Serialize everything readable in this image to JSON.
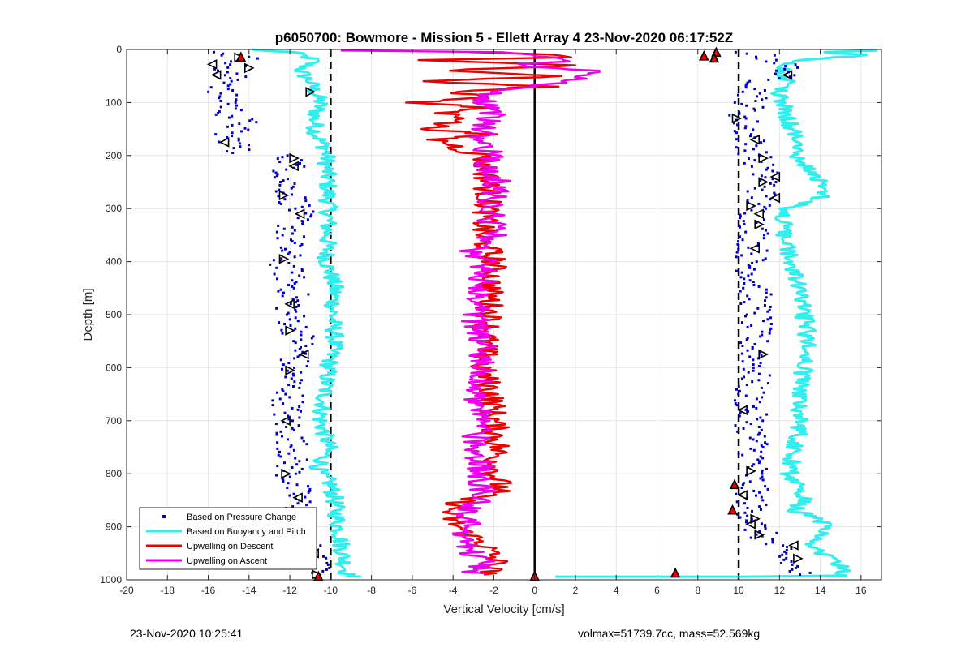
{
  "chart_data": {
    "type": "scatter",
    "title": "p6050700: Bowmore - Mission 5 - Ellett Array 4 23-Nov-2020 06:17:52Z",
    "xlabel": "Vertical Velocity [cm/s]",
    "ylabel": "Depth [m]",
    "xlim": [
      -20,
      17
    ],
    "ylim": [
      0,
      1000
    ],
    "y_reversed": true,
    "grid": true,
    "legend_position": "bottom-left",
    "xticks": [
      -20,
      -18,
      -16,
      -14,
      -12,
      -10,
      -8,
      -6,
      -4,
      -2,
      0,
      2,
      4,
      6,
      8,
      10,
      12,
      14,
      16
    ],
    "yticks": [
      0,
      100,
      200,
      300,
      400,
      500,
      600,
      700,
      800,
      900,
      1000
    ],
    "reference_lines": [
      {
        "x": -10,
        "style": "dashed",
        "color": "#000000"
      },
      {
        "x": 10,
        "style": "dashed",
        "color": "#000000"
      },
      {
        "x": 0,
        "style": "solid",
        "color": "#000000"
      }
    ],
    "series": [
      {
        "name": "Based on Pressure Change",
        "style": "points",
        "color": "#0000cc",
        "segments": [
          {
            "depth": [
              5,
              20,
              40,
              60,
              80,
              100,
              120,
              140,
              160,
              180,
              195
            ],
            "velocity": [
              -15.2,
              -14.0,
              -15.4,
              -14.5,
              -15.6,
              -14.8,
              -15.0,
              -14.2,
              -15.2,
              -14.5,
              -14.8
            ]
          },
          {
            "depth": [
              200,
              250,
              300,
              350,
              400,
              450,
              500,
              550,
              600,
              650,
              700,
              750,
              800,
              850,
              900,
              950,
              990
            ],
            "velocity": [
              -11.8,
              -12.2,
              -11.6,
              -12.0,
              -12.3,
              -11.8,
              -12.0,
              -11.4,
              -11.9,
              -12.0,
              -12.2,
              -11.8,
              -12.0,
              -11.6,
              -11.8,
              -11.0,
              -10.6
            ]
          },
          {
            "depth": [
              5,
              20,
              40,
              60,
              80,
              100,
              130,
              160,
              200,
              250,
              300,
              350,
              400,
              450,
              500,
              550,
              600,
              650,
              700,
              750,
              800,
              850,
              900,
              950,
              990
            ],
            "velocity": [
              10.5,
              11.8,
              12.6,
              11.2,
              10.8,
              10.6,
              10.2,
              10.5,
              10.8,
              11.4,
              10.8,
              10.8,
              10.6,
              10.8,
              10.9,
              10.7,
              10.9,
              10.5,
              10.6,
              10.8,
              10.7,
              10.6,
              10.8,
              12.0,
              13.0
            ]
          }
        ]
      },
      {
        "name": "Based on Buoyancy and Pitch",
        "style": "line",
        "color": "#33eeee",
        "segments": [
          {
            "depth": [
              0,
              5,
              10,
              20,
              40,
              60,
              80,
              100,
              130,
              160,
              190,
              200,
              300,
              400,
              450,
              500,
              550,
              600,
              650,
              700,
              750,
              790,
              800,
              810,
              820,
              850,
              880,
              900,
              950,
              990,
              994
            ],
            "velocity": [
              -14,
              -12,
              -11.5,
              -10.8,
              -11.5,
              -11.0,
              -10.8,
              -10.5,
              -10.8,
              -10.7,
              -10.2,
              -10.2,
              -10.1,
              -10.2,
              -9.8,
              -9.9,
              -9.8,
              -10.1,
              -10.3,
              -10.5,
              -10.1,
              -10.6,
              -10.5,
              -10.2,
              -10.0,
              -9.8,
              -9.7,
              -9.6,
              -9.4,
              -9.2,
              -8.5
            ]
          },
          {
            "depth": [
              994,
              994,
              992,
              990,
              980,
              960,
              940,
              920,
              900,
              880,
              870,
              850,
              820,
              800,
              780,
              750,
              700,
              650,
              600,
              550,
              500,
              450,
              400,
              350,
              300,
              290,
              280,
              260,
              240,
              220,
              200,
              180,
              150,
              100,
              80,
              60,
              40,
              20,
              10,
              5,
              2
            ],
            "velocity": [
              1.0,
              10.0,
              15.0,
              15.2,
              15.0,
              14.8,
              13.5,
              13.8,
              14.2,
              13.8,
              12.8,
              13.2,
              12.8,
              12.5,
              12.6,
              12.8,
              13.0,
              13.0,
              13.2,
              13.4,
              13.2,
              12.9,
              12.6,
              12.2,
              12.2,
              13.2,
              14.0,
              13.9,
              14.0,
              13.3,
              12.9,
              13.0,
              12.6,
              12.2,
              12.0,
              12.4,
              12.2,
              12.8,
              16.5,
              14.0,
              16.8
            ]
          }
        ]
      },
      {
        "name": "Upwelling on Descent",
        "style": "line",
        "color": "#ee0000",
        "segments": [
          {
            "depth": [
              5,
              10,
              15,
              20,
              30,
              40,
              50,
              60,
              70,
              80,
              90,
              100,
              110,
              120,
              130,
              140,
              150,
              160,
              170,
              180,
              190,
              200,
              250,
              300,
              350,
              400,
              450,
              500,
              550,
              600,
              650,
              700,
              750,
              800,
              830,
              850,
              870,
              890,
              910,
              930,
              950,
              970,
              990
            ],
            "velocity": [
              -3,
              0.5,
              1.5,
              -5,
              2.3,
              -4.5,
              1.5,
              -5.5,
              0.5,
              -4,
              -2,
              -6,
              -2.5,
              -4.5,
              -3,
              -4.5,
              -5,
              -2.5,
              -4.8,
              -4,
              -3.5,
              -2.5,
              -2.3,
              -2.3,
              -2.6,
              -2.0,
              -2.2,
              -2.2,
              -2.4,
              -2.6,
              -2.1,
              -2.0,
              -1.8,
              -2.0,
              -1.6,
              -3.5,
              -4.2,
              -4.0,
              -3.5,
              -2.5,
              -2.2,
              -1.8,
              -2.5
            ]
          }
        ]
      },
      {
        "name": "Upwelling on Ascent",
        "style": "line",
        "color": "#ee00ee",
        "segments": [
          {
            "depth": [
              990,
              970,
              950,
              930,
              910,
              890,
              870,
              850,
              830,
              800,
              780,
              750,
              700,
              650,
              600,
              550,
              500,
              450,
              400,
              380,
              350,
              300,
              250,
              220,
              200,
              180,
              150,
              120,
              100,
              80,
              60,
              40,
              30,
              20,
              10,
              5,
              2
            ],
            "velocity": [
              -3.0,
              -2.5,
              -3.0,
              -3.2,
              -3.5,
              -3.0,
              -3.5,
              -2.8,
              -2.5,
              -2.8,
              -2.6,
              -3.0,
              -2.6,
              -2.8,
              -2.5,
              -2.6,
              -3.0,
              -2.6,
              -2.4,
              -3.2,
              -2.0,
              -2.2,
              -1.8,
              -2.5,
              -2.0,
              -2.8,
              -2.5,
              -2.0,
              -2.6,
              -2.2,
              1.5,
              3.4,
              -1.0,
              2.0,
              -0.5,
              -2.0,
              -9.5
            ]
          }
        ]
      }
    ],
    "markers": {
      "black_triangles": [
        {
          "v": -14.5,
          "d": 15
        },
        {
          "v": -15.8,
          "d": 28
        },
        {
          "v": -14.0,
          "d": 35
        },
        {
          "v": -15.6,
          "d": 48
        },
        {
          "v": -11.0,
          "d": 80
        },
        {
          "v": -15.2,
          "d": 175
        },
        {
          "v": -11.8,
          "d": 205
        },
        {
          "v": -11.8,
          "d": 220
        },
        {
          "v": -12.3,
          "d": 275
        },
        {
          "v": -11.5,
          "d": 310
        },
        {
          "v": -12.3,
          "d": 395
        },
        {
          "v": -12.0,
          "d": 480
        },
        {
          "v": -12.0,
          "d": 530
        },
        {
          "v": -11.3,
          "d": 575
        },
        {
          "v": -12.0,
          "d": 605
        },
        {
          "v": -12.2,
          "d": 700
        },
        {
          "v": -12.2,
          "d": 800
        },
        {
          "v": -11.6,
          "d": 845
        },
        {
          "v": -12.3,
          "d": 915
        },
        {
          "v": -10.8,
          "d": 950
        },
        {
          "v": -10.7,
          "d": 990
        },
        {
          "v": 12.4,
          "d": 48
        },
        {
          "v": 9.9,
          "d": 130
        },
        {
          "v": 10.8,
          "d": 170
        },
        {
          "v": 11.2,
          "d": 205
        },
        {
          "v": 11.8,
          "d": 240
        },
        {
          "v": 11.2,
          "d": 250
        },
        {
          "v": 11.8,
          "d": 280
        },
        {
          "v": 10.6,
          "d": 295
        },
        {
          "v": 11.0,
          "d": 310
        },
        {
          "v": 11.0,
          "d": 330
        },
        {
          "v": 10.8,
          "d": 375
        },
        {
          "v": 11.2,
          "d": 575
        },
        {
          "v": 10.2,
          "d": 680
        },
        {
          "v": 10.6,
          "d": 795
        },
        {
          "v": 10.2,
          "d": 840
        },
        {
          "v": 10.8,
          "d": 885
        },
        {
          "v": 10.6,
          "d": 895
        },
        {
          "v": 11.0,
          "d": 915
        },
        {
          "v": 12.7,
          "d": 935
        },
        {
          "v": 12.9,
          "d": 960
        }
      ],
      "red_triangles": [
        {
          "v": -14.4,
          "d": 14
        },
        {
          "v": -10.6,
          "d": 993
        },
        {
          "v": 0,
          "d": 993
        },
        {
          "v": 6.9,
          "d": 987
        },
        {
          "v": 8.3,
          "d": 12
        },
        {
          "v": 8.9,
          "d": 5
        },
        {
          "v": 8.8,
          "d": 16
        },
        {
          "v": 9.8,
          "d": 820
        },
        {
          "v": 9.7,
          "d": 868
        }
      ]
    },
    "legend": [
      {
        "label": "Based on Pressure Change",
        "style": "point",
        "color": "#0000cc"
      },
      {
        "label": "Based on Buoyancy and Pitch",
        "style": "line",
        "color": "#33eeee"
      },
      {
        "label": "Upwelling on Descent",
        "style": "line",
        "color": "#ee0000"
      },
      {
        "label": "Upwelling on Ascent",
        "style": "line",
        "color": "#ee00ee"
      }
    ]
  },
  "footer": {
    "left": "23-Nov-2020 10:25:41",
    "right": "volmax=51739.7cc, mass=52.569kg"
  }
}
